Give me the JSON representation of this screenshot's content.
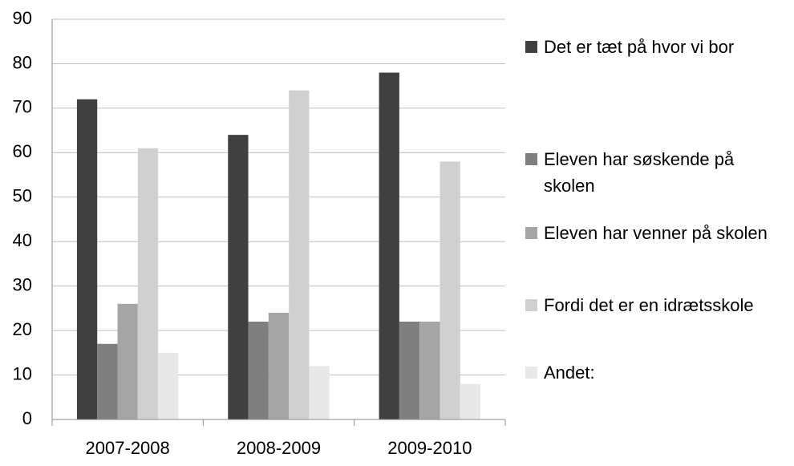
{
  "chart_data": {
    "type": "bar",
    "categories": [
      "2007-2008",
      "2008-2009",
      "2009-2010"
    ],
    "series": [
      {
        "name": "Det er tæt på hvor vi bor",
        "color": "#404040",
        "values": [
          72,
          64,
          78
        ]
      },
      {
        "name": "Eleven har søskende på skolen",
        "color": "#7f7f7f",
        "values": [
          17,
          22,
          22
        ]
      },
      {
        "name": "Eleven har venner på skolen",
        "color": "#a5a5a5",
        "values": [
          26,
          24,
          22
        ]
      },
      {
        "name": "Fordi det er en idrætsskole",
        "color": "#d0d0d0",
        "values": [
          61,
          74,
          58
        ]
      },
      {
        "name": "Andet:",
        "color": "#e8e8e8",
        "values": [
          15,
          12,
          8
        ]
      }
    ],
    "ylim": [
      0,
      90
    ],
    "yticks": [
      0,
      10,
      20,
      30,
      40,
      50,
      60,
      70,
      80,
      90
    ],
    "grid": true,
    "legend": "right"
  }
}
